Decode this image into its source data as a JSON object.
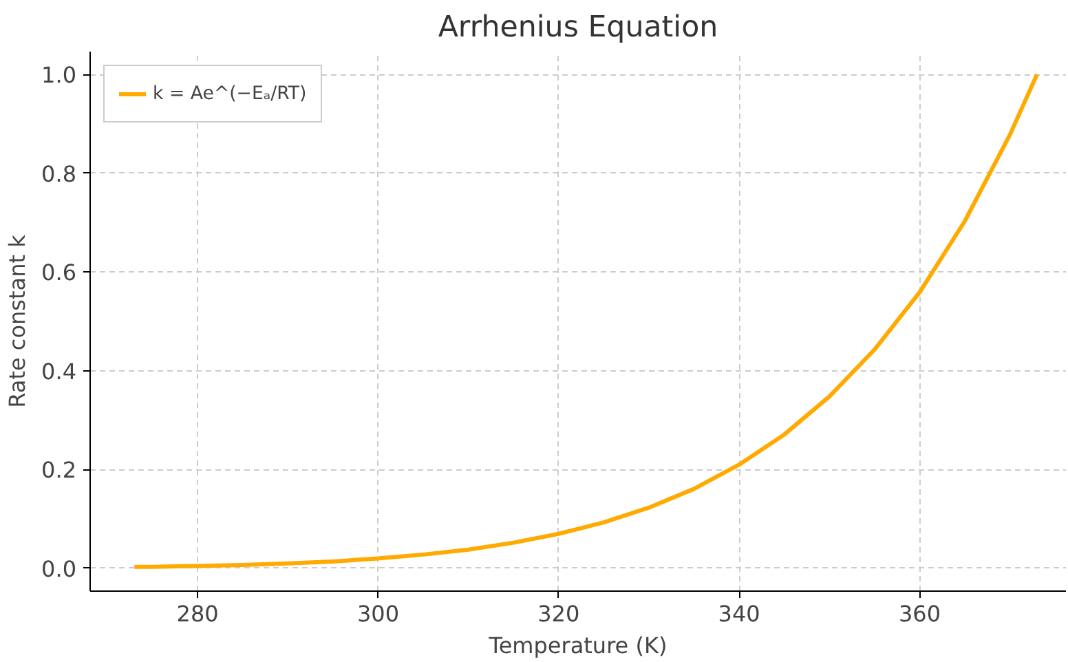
{
  "chart_data": {
    "type": "line",
    "title": "Arrhenius Equation",
    "xlabel": "Temperature (K)",
    "ylabel": "Rate constant k",
    "x": [
      273,
      275,
      280,
      285,
      290,
      295,
      300,
      305,
      310,
      315,
      320,
      325,
      330,
      335,
      340,
      345,
      350,
      355,
      360,
      365,
      370,
      373
    ],
    "series": [
      {
        "name": "k = Ae^(−Eₐ/RT)",
        "color": "#ffaa00",
        "values": [
          0.003,
          0.003,
          0.005,
          0.007,
          0.01,
          0.014,
          0.02,
          0.028,
          0.038,
          0.052,
          0.07,
          0.093,
          0.123,
          0.161,
          0.21,
          0.271,
          0.348,
          0.443,
          0.559,
          0.703,
          0.878,
          1.0
        ]
      }
    ],
    "xlim": [
      268.1,
      376.2
    ],
    "ylim": [
      -0.046,
      1.046
    ],
    "xticks": [
      280,
      300,
      320,
      340,
      360
    ],
    "yticks": [
      {
        "value": 0,
        "label": "0.0"
      },
      0.2,
      0.4,
      0.6,
      0.8,
      {
        "value": 1,
        "label": "1.0"
      }
    ],
    "grid": true,
    "legend": "top left",
    "line_style": "solid",
    "marker": "none"
  }
}
